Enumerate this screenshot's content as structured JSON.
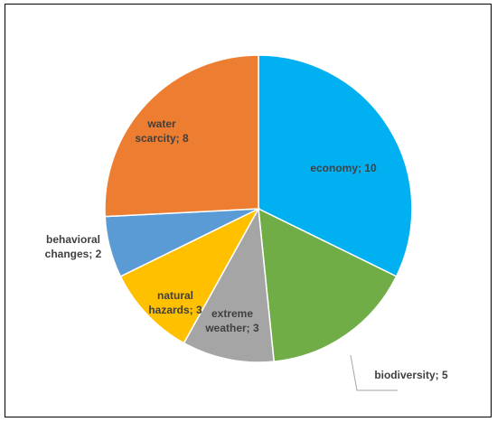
{
  "chart_data": {
    "type": "pie",
    "title": "",
    "legend": "none",
    "start_angle_deg": 0,
    "direction": "clockwise",
    "slices": [
      {
        "label": "economy",
        "value": 10,
        "color": "#00B0F0",
        "text": "economy; 10"
      },
      {
        "label": "biodiversity",
        "value": 5,
        "color": "#70AD47",
        "text": "biodiversity; 5"
      },
      {
        "label": "extreme weather",
        "value": 3,
        "color": "#A5A5A5",
        "text": "extreme weather; 3"
      },
      {
        "label": "natural hazards",
        "value": 3,
        "color": "#FFC000",
        "text": "natural hazards; 3"
      },
      {
        "label": "behavioral changes",
        "value": 2,
        "color": "#5B9BD5",
        "text": "behavioral changes; 2"
      },
      {
        "label": "water scarcity",
        "value": 8,
        "color": "#ED7D31",
        "text": "water scarcity; 8"
      }
    ]
  }
}
